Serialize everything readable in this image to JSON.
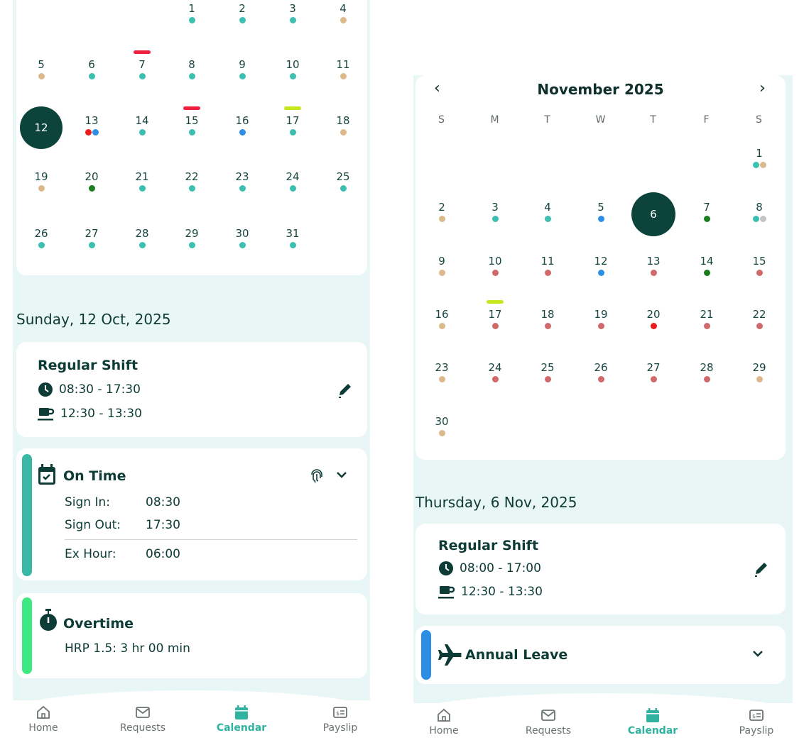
{
  "colors": {
    "teal": "#3bbfb0",
    "tan": "#dcb98a",
    "blue": "#2f8fe6",
    "red": "#ee1b1b",
    "salmon": "#d06a6a",
    "green": "#1b7f22",
    "grey": "#c4c4c4",
    "bar_red": "#f0213d",
    "bar_lime": "#c8e81e",
    "selected": "#0c433b",
    "accent_teal": "#39b8a8",
    "accent_green": "#3ee882",
    "accent_blue": "#2b8ee3",
    "nav_active": "#2fb2a0"
  },
  "left": {
    "days": [
      {
        "n": "1",
        "dots": [
          "teal"
        ]
      },
      {
        "n": "2",
        "dots": [
          "teal"
        ]
      },
      {
        "n": "3",
        "dots": [
          "teal"
        ]
      },
      {
        "n": "4",
        "dots": [
          "tan"
        ]
      },
      {
        "n": "5",
        "dots": [
          "tan"
        ]
      },
      {
        "n": "6",
        "dots": [
          "teal"
        ]
      },
      {
        "n": "7",
        "dots": [
          "teal"
        ],
        "bar": "bar_red"
      },
      {
        "n": "8",
        "dots": [
          "teal"
        ]
      },
      {
        "n": "9",
        "dots": [
          "teal"
        ]
      },
      {
        "n": "10",
        "dots": [
          "teal"
        ]
      },
      {
        "n": "11",
        "dots": [
          "tan"
        ]
      },
      {
        "n": "12",
        "dots": [],
        "selected": true
      },
      {
        "n": "13",
        "dots": [
          "red",
          "blue"
        ]
      },
      {
        "n": "14",
        "dots": [
          "teal"
        ]
      },
      {
        "n": "15",
        "dots": [
          "teal"
        ],
        "bar": "bar_red"
      },
      {
        "n": "16",
        "dots": [
          "blue"
        ]
      },
      {
        "n": "17",
        "dots": [
          "teal"
        ],
        "bar": "bar_lime"
      },
      {
        "n": "18",
        "dots": [
          "tan"
        ]
      },
      {
        "n": "19",
        "dots": [
          "tan"
        ]
      },
      {
        "n": "20",
        "dots": [
          "green"
        ]
      },
      {
        "n": "21",
        "dots": [
          "teal"
        ]
      },
      {
        "n": "22",
        "dots": [
          "teal"
        ]
      },
      {
        "n": "23",
        "dots": [
          "teal"
        ]
      },
      {
        "n": "24",
        "dots": [
          "teal"
        ]
      },
      {
        "n": "25",
        "dots": [
          "teal"
        ]
      },
      {
        "n": "26",
        "dots": [
          "teal"
        ]
      },
      {
        "n": "27",
        "dots": [
          "teal"
        ]
      },
      {
        "n": "28",
        "dots": [
          "teal"
        ]
      },
      {
        "n": "29",
        "dots": [
          "teal"
        ]
      },
      {
        "n": "30",
        "dots": [
          "teal"
        ]
      },
      {
        "n": "31",
        "dots": [
          "teal"
        ]
      }
    ],
    "date_heading": "Sunday, 12 Oct, 2025",
    "shift": {
      "title": "Regular Shift",
      "time": "08:30 - 17:30",
      "break": "12:30 - 13:30"
    },
    "attendance": {
      "title": "On Time",
      "sign_in_label": "Sign In:",
      "sign_in": "08:30",
      "sign_out_label": "Sign Out:",
      "sign_out": "17:30",
      "ex_hour_label": "Ex Hour:",
      "ex_hour": "06:00"
    },
    "overtime": {
      "title": "Overtime",
      "detail": "HRP 1.5: 3 hr 00 min"
    }
  },
  "right": {
    "month_title": "November 2025",
    "weekdays": [
      "S",
      "M",
      "T",
      "W",
      "T",
      "F",
      "S"
    ],
    "days": [
      {
        "n": "1",
        "dots": [
          "teal",
          "tan"
        ]
      },
      {
        "n": "2",
        "dots": [
          "tan"
        ]
      },
      {
        "n": "3",
        "dots": [
          "teal"
        ]
      },
      {
        "n": "4",
        "dots": [
          "teal"
        ]
      },
      {
        "n": "5",
        "dots": [
          "blue"
        ]
      },
      {
        "n": "6",
        "dots": [],
        "selected": true
      },
      {
        "n": "7",
        "dots": [
          "green"
        ]
      },
      {
        "n": "8",
        "dots": [
          "teal",
          "grey"
        ]
      },
      {
        "n": "9",
        "dots": [
          "tan"
        ]
      },
      {
        "n": "10",
        "dots": [
          "salmon"
        ]
      },
      {
        "n": "11",
        "dots": [
          "salmon"
        ]
      },
      {
        "n": "12",
        "dots": [
          "blue"
        ]
      },
      {
        "n": "13",
        "dots": [
          "salmon"
        ]
      },
      {
        "n": "14",
        "dots": [
          "green"
        ]
      },
      {
        "n": "15",
        "dots": [
          "salmon"
        ]
      },
      {
        "n": "16",
        "dots": [
          "tan"
        ]
      },
      {
        "n": "17",
        "dots": [
          "salmon"
        ],
        "bar": "bar_lime"
      },
      {
        "n": "18",
        "dots": [
          "salmon"
        ]
      },
      {
        "n": "19",
        "dots": [
          "salmon"
        ]
      },
      {
        "n": "20",
        "dots": [
          "red"
        ]
      },
      {
        "n": "21",
        "dots": [
          "salmon"
        ]
      },
      {
        "n": "22",
        "dots": [
          "salmon"
        ]
      },
      {
        "n": "23",
        "dots": [
          "tan"
        ]
      },
      {
        "n": "24",
        "dots": [
          "salmon"
        ]
      },
      {
        "n": "25",
        "dots": [
          "salmon"
        ]
      },
      {
        "n": "26",
        "dots": [
          "salmon"
        ]
      },
      {
        "n": "27",
        "dots": [
          "salmon"
        ]
      },
      {
        "n": "28",
        "dots": [
          "salmon"
        ]
      },
      {
        "n": "29",
        "dots": [
          "tan"
        ]
      },
      {
        "n": "30",
        "dots": [
          "tan"
        ]
      }
    ],
    "date_heading": "Thursday, 6 Nov, 2025",
    "shift": {
      "title": "Regular Shift",
      "time": "08:00 - 17:00",
      "break": "12:30 - 13:30"
    },
    "leave": {
      "title": "Annual Leave"
    }
  },
  "navbar": {
    "items": [
      {
        "label": "Home",
        "icon": "home-icon"
      },
      {
        "label": "Requests",
        "icon": "mail-icon"
      },
      {
        "label": "Calendar",
        "icon": "calendar-icon",
        "active": true
      },
      {
        "label": "Payslip",
        "icon": "payslip-icon"
      }
    ]
  }
}
